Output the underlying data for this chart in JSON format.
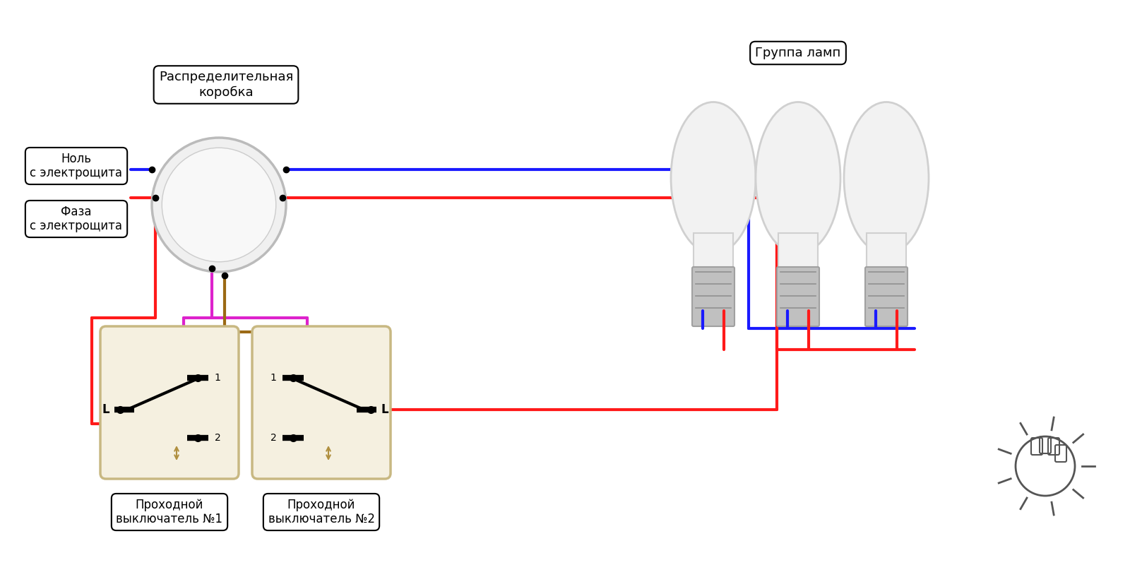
{
  "bg_color": "#ffffff",
  "wire_colors": {
    "blue": "#1a1aff",
    "red": "#ff1a1a",
    "magenta": "#dd22cc",
    "brown": "#9B6914"
  },
  "labels": {
    "junction_box": "Распределительная\nкоробка",
    "zero": "Ноль\nс электрощита",
    "phase": "Фаза\nс электрощита",
    "lamps": "Группа ламп",
    "switch1": "Проходной\nвыключатель №1",
    "switch2": "Проходной\nвыключатель №2"
  },
  "lw": 3.0
}
